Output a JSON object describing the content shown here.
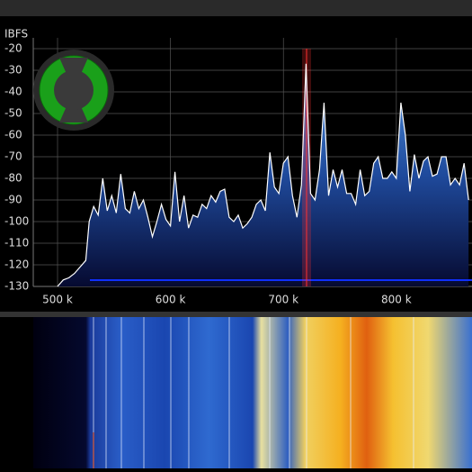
{
  "chart_data": {
    "type": "line",
    "y_label": "IBFS",
    "x": [
      500000,
      505000,
      510000,
      515000,
      520000,
      525000,
      528000,
      532000,
      536000,
      540000,
      544000,
      548000,
      552000,
      556000,
      560000,
      564000,
      568000,
      572000,
      576000,
      580000,
      584000,
      588000,
      592000,
      596000,
      600000,
      604000,
      608000,
      612000,
      616000,
      620000,
      624000,
      628000,
      632000,
      636000,
      640000,
      644000,
      648000,
      652000,
      656000,
      660000,
      664000,
      668000,
      672000,
      676000,
      680000,
      684000,
      688000,
      692000,
      696000,
      700000,
      704000,
      708000,
      712000,
      716000,
      720000,
      724000,
      728000,
      732000,
      736000,
      740000,
      744000,
      748000,
      752000,
      756000,
      760000,
      764000,
      768000,
      772000,
      776000,
      780000,
      784000,
      788000,
      792000,
      796000,
      800000,
      804000,
      808000,
      812000,
      816000,
      820000,
      824000,
      828000,
      832000,
      836000,
      840000,
      844000,
      848000,
      852000,
      856000,
      860000,
      864000
    ],
    "series": [
      {
        "color": "#ffffff",
        "values": [
          -130,
          -127,
          -126,
          -124,
          -121,
          -118,
          -100,
          -93,
          -97,
          -80,
          -95,
          -88,
          -96,
          -78,
          -94,
          -96,
          -86,
          -94,
          -90,
          -98,
          -107,
          -100,
          -92,
          -99,
          -102,
          -77,
          -100,
          -88,
          -103,
          -97,
          -98,
          -92,
          -94,
          -88,
          -91,
          -86,
          -85,
          -98,
          -100,
          -97,
          -103,
          -101,
          -98,
          -92,
          -90,
          -95,
          -68,
          -84,
          -87,
          -73,
          -70,
          -88,
          -98,
          -83,
          -27,
          -87,
          -90,
          -76,
          -45,
          -88,
          -76,
          -84,
          -76,
          -87,
          -87,
          -92,
          -76,
          -88,
          -86,
          -73,
          -70,
          -80,
          -80,
          -77,
          -80,
          -45,
          -60,
          -86,
          -69,
          -80,
          -72,
          -70,
          -79,
          -78,
          -70,
          -70,
          -83,
          -80,
          -83,
          -73,
          -90
        ]
      }
    ],
    "xlim": [
      478500,
      867000
    ],
    "ylim": [
      -130,
      -20
    ],
    "xticks": [
      {
        "value": 500000,
        "label": "500 k"
      },
      {
        "value": 600000,
        "label": "600 k"
      },
      {
        "value": 700000,
        "label": "700 k"
      },
      {
        "value": 800000,
        "label": "800 k"
      }
    ],
    "yticks": [
      -20,
      -30,
      -40,
      -50,
      -60,
      -70,
      -80,
      -90,
      -100,
      -110,
      -120,
      -130
    ],
    "grid": true
  }
}
